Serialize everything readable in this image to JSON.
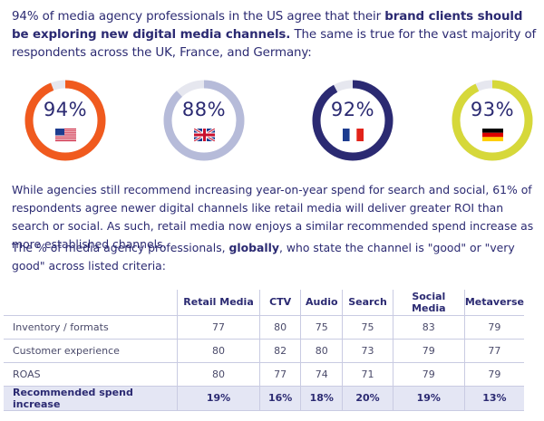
{
  "intro": {
    "part1": "94% of media agency professionals in the US agree that their ",
    "bold": "brand clients should be exploring new digital media channels.",
    "part2": " The same is true for the vast majority of respondents across the UK, France, and Germany:"
  },
  "colors": {
    "navy": "#2b2a72",
    "us": "#f05a1e",
    "uk": "#b6bbd9",
    "fr": "#2b2a72",
    "de": "#d6d83a",
    "track": "#e6e7ef",
    "total_row": "#e4e6f4"
  },
  "gauges": [
    {
      "label": "94%",
      "value": 94,
      "color": "#f05a1e",
      "flag": "us-flag-icon"
    },
    {
      "label": "88%",
      "value": 88,
      "color": "#b6bbd9",
      "flag": "uk-flag-icon"
    },
    {
      "label": "92%",
      "value": 92,
      "color": "#2b2a72",
      "flag": "france-flag-icon"
    },
    {
      "label": "93%",
      "value": 93,
      "color": "#d6d83a",
      "flag": "germany-flag-icon"
    }
  ],
  "paragraph": "While agencies still recommend increasing year-on-year spend for search and social, 61% of respondents agree newer digital channels like retail media will deliver greater ROI than search or social. As such, retail media now enjoys a similar recommended spend increase as more established channels.",
  "paragraph2": {
    "part1": "The % of media agency professionals, ",
    "bold": "globally",
    "part2": ", who state the channel is \"good\" or \"very good\" across listed criteria:"
  },
  "chart_data": {
    "type": "table",
    "columns": [
      "",
      "Retail Media",
      "CTV",
      "Audio",
      "Search",
      "Social Media",
      "Metaverse"
    ],
    "rows": [
      {
        "label": "Inventory / formats",
        "values": [
          "77",
          "80",
          "75",
          "75",
          "83",
          "79"
        ]
      },
      {
        "label": "Customer experience",
        "values": [
          "80",
          "82",
          "80",
          "73",
          "79",
          "77"
        ]
      },
      {
        "label": "ROAS",
        "values": [
          "80",
          "77",
          "74",
          "71",
          "79",
          "79"
        ]
      },
      {
        "label": "Recommended spend increase",
        "values": [
          "19%",
          "16%",
          "18%",
          "20%",
          "19%",
          "13%"
        ]
      }
    ]
  }
}
